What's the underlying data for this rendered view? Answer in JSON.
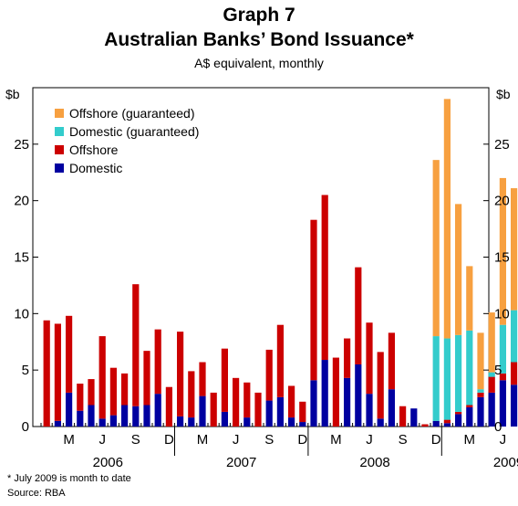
{
  "chart_data": {
    "type": "bar",
    "stacked": true,
    "title": "Graph 7",
    "subtitle": "Australian Banks’ Bond Issuance*",
    "units_note": "A$ equivalent, monthly",
    "ylabel_left": "$b",
    "ylabel_right": "$b",
    "ylim": [
      0,
      30
    ],
    "yticks": [
      0,
      5,
      10,
      15,
      20,
      25
    ],
    "grid": false,
    "legend_position": "top-left",
    "x_month_labels": [
      "M",
      "J",
      "S",
      "D",
      "M",
      "J",
      "S",
      "D",
      "M",
      "J",
      "S",
      "D",
      "M",
      "J",
      "S"
    ],
    "x_year_labels": [
      "2006",
      "2007",
      "2008",
      "2009"
    ],
    "months": [
      "Jan-2006",
      "Feb-2006",
      "Mar-2006",
      "Apr-2006",
      "May-2006",
      "Jun-2006",
      "Jul-2006",
      "Aug-2006",
      "Sep-2006",
      "Oct-2006",
      "Nov-2006",
      "Dec-2006",
      "Jan-2007",
      "Feb-2007",
      "Mar-2007",
      "Apr-2007",
      "May-2007",
      "Jun-2007",
      "Jul-2007",
      "Aug-2007",
      "Sep-2007",
      "Oct-2007",
      "Nov-2007",
      "Dec-2007",
      "Jan-2008",
      "Feb-2008",
      "Mar-2008",
      "Apr-2008",
      "May-2008",
      "Jun-2008",
      "Jul-2008",
      "Aug-2008",
      "Sep-2008",
      "Oct-2008",
      "Nov-2008",
      "Dec-2008",
      "Jan-2009",
      "Feb-2009",
      "Mar-2009",
      "Apr-2009",
      "May-2009",
      "Jun-2009",
      "Jul-2009"
    ],
    "series": [
      {
        "name": "Domestic",
        "color": "#0000a0",
        "values": [
          0,
          0.5,
          3.0,
          1.4,
          1.9,
          0.7,
          1.0,
          1.9,
          1.8,
          1.9,
          2.9,
          0,
          0.9,
          0.8,
          2.7,
          0,
          1.3,
          0,
          0.8,
          0,
          2.3,
          2.6,
          0.8,
          0.4,
          4.1,
          5.9,
          0,
          4.3,
          5.5,
          2.9,
          0.7,
          3.3,
          0,
          1.6,
          0,
          0.5,
          0.3,
          1.1,
          1.7,
          2.6,
          3.0,
          4.1,
          3.7
        ]
      },
      {
        "name": "Offshore",
        "color": "#cc0000",
        "values": [
          9.4,
          8.6,
          6.8,
          2.4,
          2.3,
          7.3,
          4.2,
          2.8,
          10.8,
          4.8,
          5.7,
          3.5,
          7.5,
          4.1,
          3.0,
          3.0,
          5.6,
          4.3,
          3.1,
          3.0,
          4.5,
          6.4,
          2.8,
          1.8,
          14.2,
          14.6,
          6.1,
          3.5,
          8.6,
          6.3,
          5.9,
          5.0,
          1.8,
          0,
          0.2,
          0,
          0.3,
          0.2,
          0.2,
          0.4,
          1.4,
          0.6,
          2.0
        ]
      },
      {
        "name": "Domestic (guaranteed)",
        "color": "#33cccc",
        "values": [
          0,
          0,
          0,
          0,
          0,
          0,
          0,
          0,
          0,
          0,
          0,
          0,
          0,
          0,
          0,
          0,
          0,
          0,
          0,
          0,
          0,
          0,
          0,
          0,
          0,
          0,
          0,
          0,
          0,
          0,
          0,
          0,
          0,
          0,
          0,
          7.5,
          7.2,
          6.8,
          6.6,
          0.3,
          0.4,
          4.3,
          4.6
        ]
      },
      {
        "name": "Offshore (guaranteed)",
        "color": "#f7a040",
        "values": [
          0,
          0,
          0,
          0,
          0,
          0,
          0,
          0,
          0,
          0,
          0,
          0,
          0,
          0,
          0,
          0,
          0,
          0,
          0,
          0,
          0,
          0,
          0,
          0,
          0,
          0,
          0,
          0,
          0,
          0,
          0,
          0,
          0,
          0,
          0,
          15.6,
          21.2,
          11.6,
          5.7,
          5.0,
          5.3,
          13.0,
          10.8
        ]
      }
    ],
    "legend_order": [
      "Offshore (guaranteed)",
      "Domestic (guaranteed)",
      "Offshore",
      "Domestic"
    ]
  },
  "footnote": "*   July 2009 is month to date",
  "source": "Source: RBA"
}
